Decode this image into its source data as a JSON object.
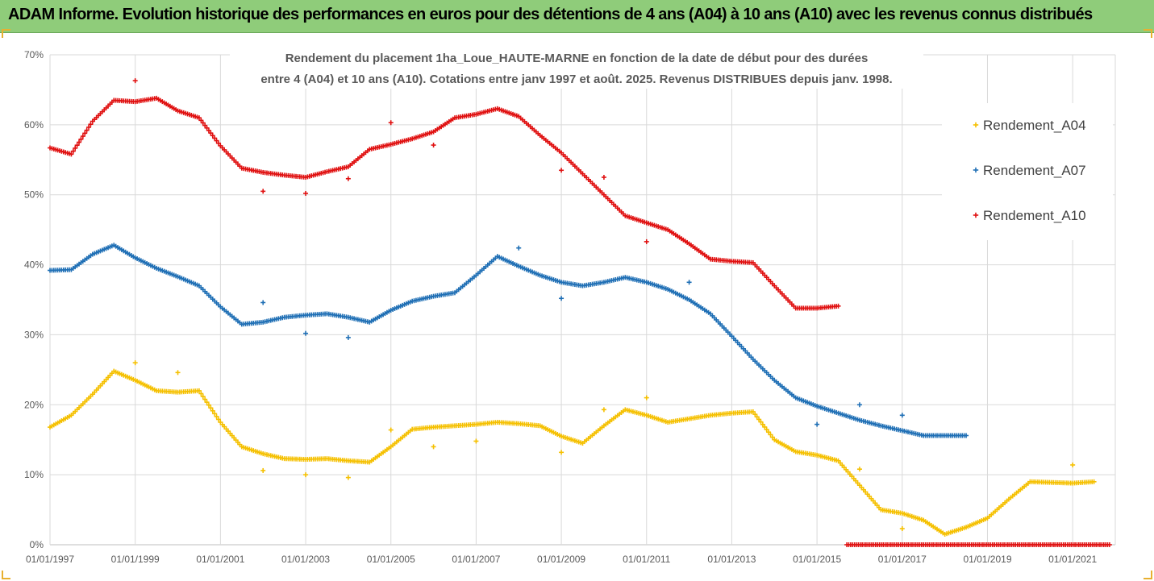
{
  "header": {
    "title": "ADAM Informe. Evolution historique des performances en euros pour des détentions de 4 ans (A04) à 10 ans (A10) avec les revenus connus distribués"
  },
  "colors": {
    "header_bg": "#8fcc7a",
    "a04": "#f5c000",
    "a07": "#1f6fb5",
    "a10": "#e01010",
    "title_text": "#555555"
  },
  "chart_data": {
    "type": "scatter",
    "title_lines": [
      "Rendement du placement 1ha_Loue_HAUTE-MARNE en fonction de la date de début pour des durées",
      "entre 4 (A04) et 10 ans (A10). Cotations entre janv 1997 et août. 2025. Revenus DISTRIBUES depuis janv. 1998."
    ],
    "x_ticks": [
      "01/01/1997",
      "01/01/1999",
      "01/01/2001",
      "01/01/2003",
      "01/01/2005",
      "01/01/2007",
      "01/01/2009",
      "01/01/2011",
      "01/01/2013",
      "01/01/2015",
      "01/01/2017",
      "01/01/2019",
      "01/01/2021"
    ],
    "y_ticks": [
      "0%",
      "10%",
      "20%",
      "30%",
      "40%",
      "50%",
      "60%",
      "70%"
    ],
    "xlim": [
      1997.0,
      2022.0
    ],
    "ylim": [
      0,
      70
    ],
    "grid": true,
    "legend_position": "right",
    "series": [
      {
        "name": "Rendement_A04",
        "color": "#f5c000",
        "points": [
          [
            1997.0,
            16.8
          ],
          [
            1997.5,
            18.5
          ],
          [
            1998.0,
            21.5
          ],
          [
            1998.5,
            24.8
          ],
          [
            1999.0,
            23.5
          ],
          [
            1999.5,
            22.0
          ],
          [
            2000.0,
            21.8
          ],
          [
            2000.5,
            22.0
          ],
          [
            2001.0,
            17.5
          ],
          [
            2001.5,
            14.0
          ],
          [
            2002.0,
            13.0
          ],
          [
            2002.5,
            12.3
          ],
          [
            2003.0,
            12.2
          ],
          [
            2003.5,
            12.3
          ],
          [
            2004.0,
            12.0
          ],
          [
            2004.5,
            11.8
          ],
          [
            2005.0,
            14.0
          ],
          [
            2005.5,
            16.5
          ],
          [
            2006.0,
            16.8
          ],
          [
            2006.5,
            17.0
          ],
          [
            2007.0,
            17.2
          ],
          [
            2007.5,
            17.5
          ],
          [
            2008.0,
            17.3
          ],
          [
            2008.5,
            17.0
          ],
          [
            2009.0,
            15.5
          ],
          [
            2009.5,
            14.5
          ],
          [
            2010.0,
            17.0
          ],
          [
            2010.5,
            19.3
          ],
          [
            2011.0,
            18.5
          ],
          [
            2011.5,
            17.5
          ],
          [
            2012.0,
            18.0
          ],
          [
            2012.5,
            18.5
          ],
          [
            2013.0,
            18.8
          ],
          [
            2013.5,
            19.0
          ],
          [
            2014.0,
            15.0
          ],
          [
            2014.5,
            13.3
          ],
          [
            2015.0,
            12.8
          ],
          [
            2015.5,
            12.0
          ],
          [
            2016.0,
            8.5
          ],
          [
            2016.5,
            5.0
          ],
          [
            2017.0,
            4.5
          ],
          [
            2017.5,
            3.5
          ],
          [
            2018.0,
            1.5
          ],
          [
            2018.5,
            2.5
          ],
          [
            2019.0,
            3.8
          ],
          [
            2019.5,
            6.5
          ],
          [
            2020.0,
            9.0
          ],
          [
            2020.5,
            8.9
          ],
          [
            2021.0,
            8.8
          ],
          [
            2021.5,
            9.0
          ]
        ],
        "outliers": [
          [
            1999.0,
            26.0
          ],
          [
            2000.0,
            24.6
          ],
          [
            2002.0,
            10.6
          ],
          [
            2003.0,
            10.0
          ],
          [
            2004.0,
            9.6
          ],
          [
            2005.0,
            16.4
          ],
          [
            2006.0,
            14.0
          ],
          [
            2007.0,
            14.8
          ],
          [
            2009.0,
            13.2
          ],
          [
            2010.0,
            19.3
          ],
          [
            2011.0,
            21.0
          ],
          [
            2016.0,
            10.8
          ],
          [
            2017.0,
            2.3
          ],
          [
            2021.0,
            11.4
          ]
        ]
      },
      {
        "name": "Rendement_A07",
        "color": "#1f6fb5",
        "points": [
          [
            1997.0,
            39.2
          ],
          [
            1997.5,
            39.3
          ],
          [
            1998.0,
            41.5
          ],
          [
            1998.5,
            42.8
          ],
          [
            1999.0,
            41.0
          ],
          [
            1999.5,
            39.5
          ],
          [
            2000.0,
            38.3
          ],
          [
            2000.5,
            37.0
          ],
          [
            2001.0,
            34.0
          ],
          [
            2001.5,
            31.5
          ],
          [
            2002.0,
            31.8
          ],
          [
            2002.5,
            32.5
          ],
          [
            2003.0,
            32.8
          ],
          [
            2003.5,
            33.0
          ],
          [
            2004.0,
            32.5
          ],
          [
            2004.5,
            31.8
          ],
          [
            2005.0,
            33.5
          ],
          [
            2005.5,
            34.8
          ],
          [
            2006.0,
            35.5
          ],
          [
            2006.5,
            36.0
          ],
          [
            2007.0,
            38.5
          ],
          [
            2007.5,
            41.2
          ],
          [
            2008.0,
            39.8
          ],
          [
            2008.5,
            38.5
          ],
          [
            2009.0,
            37.5
          ],
          [
            2009.5,
            37.0
          ],
          [
            2010.0,
            37.5
          ],
          [
            2010.5,
            38.2
          ],
          [
            2011.0,
            37.5
          ],
          [
            2011.5,
            36.5
          ],
          [
            2012.0,
            35.0
          ],
          [
            2012.5,
            33.0
          ],
          [
            2013.0,
            29.8
          ],
          [
            2013.5,
            26.5
          ],
          [
            2014.0,
            23.5
          ],
          [
            2014.5,
            21.0
          ],
          [
            2015.0,
            19.8
          ],
          [
            2015.5,
            18.8
          ],
          [
            2016.0,
            17.8
          ],
          [
            2016.5,
            17.0
          ],
          [
            2017.0,
            16.3
          ],
          [
            2017.5,
            15.6
          ],
          [
            2018.0,
            15.6
          ],
          [
            2018.5,
            15.6
          ]
        ],
        "outliers": [
          [
            2002.0,
            34.6
          ],
          [
            2003.0,
            30.2
          ],
          [
            2004.0,
            29.6
          ],
          [
            2008.0,
            42.4
          ],
          [
            2009.0,
            35.2
          ],
          [
            2012.0,
            37.5
          ],
          [
            2015.0,
            17.2
          ],
          [
            2016.0,
            20.0
          ],
          [
            2017.0,
            18.5
          ]
        ]
      },
      {
        "name": "Rendement_A10",
        "color": "#e01010",
        "points": [
          [
            1997.0,
            56.7
          ],
          [
            1997.5,
            55.8
          ],
          [
            1998.0,
            60.5
          ],
          [
            1998.5,
            63.5
          ],
          [
            1999.0,
            63.3
          ],
          [
            1999.5,
            63.8
          ],
          [
            2000.0,
            62.0
          ],
          [
            2000.5,
            61.0
          ],
          [
            2001.0,
            57.0
          ],
          [
            2001.5,
            53.8
          ],
          [
            2002.0,
            53.2
          ],
          [
            2002.5,
            52.8
          ],
          [
            2003.0,
            52.5
          ],
          [
            2003.5,
            53.3
          ],
          [
            2004.0,
            54.0
          ],
          [
            2004.5,
            56.5
          ],
          [
            2005.0,
            57.2
          ],
          [
            2005.5,
            58.0
          ],
          [
            2006.0,
            59.0
          ],
          [
            2006.5,
            61.0
          ],
          [
            2007.0,
            61.5
          ],
          [
            2007.5,
            62.3
          ],
          [
            2008.0,
            61.2
          ],
          [
            2008.5,
            58.5
          ],
          [
            2009.0,
            56.0
          ],
          [
            2009.5,
            53.0
          ],
          [
            2010.0,
            50.0
          ],
          [
            2010.5,
            47.0
          ],
          [
            2011.0,
            46.0
          ],
          [
            2011.5,
            45.0
          ],
          [
            2012.0,
            43.0
          ],
          [
            2012.5,
            40.8
          ],
          [
            2013.0,
            40.5
          ],
          [
            2013.5,
            40.3
          ],
          [
            2014.0,
            37.0
          ],
          [
            2014.5,
            33.8
          ],
          [
            2015.0,
            33.8
          ],
          [
            2015.5,
            34.1
          ]
        ],
        "outliers": [
          [
            1999.0,
            66.3
          ],
          [
            2002.0,
            50.5
          ],
          [
            2003.0,
            50.2
          ],
          [
            2004.0,
            52.3
          ],
          [
            2005.0,
            60.3
          ],
          [
            2006.0,
            57.1
          ],
          [
            2009.0,
            53.5
          ],
          [
            2010.0,
            52.5
          ],
          [
            2011.0,
            43.3
          ]
        ],
        "zero_band": [
          2015.7,
          2021.9
        ]
      }
    ]
  }
}
